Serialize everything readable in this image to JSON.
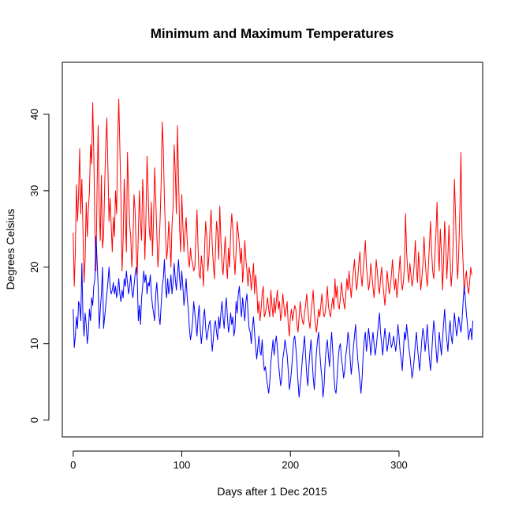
{
  "chart_data": {
    "type": "line",
    "title": "Minimum and Maximum Temperatures",
    "xlabel": "Days after 1 Dec 2015",
    "ylabel": "Degrees Celsius",
    "xlim": [
      -10,
      377
    ],
    "ylim": [
      -2.2,
      46.8
    ],
    "x_ticks": [
      0,
      100,
      200,
      300
    ],
    "y_ticks": [
      0,
      10,
      20,
      30,
      40
    ],
    "grid": false,
    "legend": "none",
    "series": [
      {
        "color": "#ff0000",
        "values": [
          24.5,
          17.5,
          22.0,
          30.8,
          26.0,
          29.5,
          35.5,
          27.0,
          31.5,
          25.0,
          18.0,
          21.0,
          28.5,
          24.0,
          27.5,
          30.0,
          36.0,
          33.5,
          41.5,
          35.0,
          25.0,
          19.5,
          30.0,
          38.5,
          27.5,
          23.5,
          32.0,
          22.5,
          24.0,
          30.5,
          36.0,
          39.5,
          33.0,
          26.0,
          29.0,
          25.5,
          22.0,
          26.5,
          24.0,
          30.0,
          27.0,
          36.5,
          42.0,
          35.5,
          29.0,
          19.5,
          23.5,
          31.5,
          27.0,
          22.0,
          35.0,
          30.0,
          25.5,
          24.0,
          20.0,
          23.0,
          29.5,
          27.5,
          22.5,
          19.0,
          24.5,
          30.0,
          26.0,
          23.5,
          31.5,
          28.0,
          21.0,
          26.5,
          34.5,
          30.0,
          25.0,
          23.5,
          28.5,
          21.5,
          26.0,
          33.0,
          29.0,
          24.5,
          20.0,
          22.5,
          26.0,
          31.0,
          39.0,
          35.5,
          29.0,
          24.5,
          21.0,
          22.5,
          26.0,
          23.5,
          20.0,
          25.5,
          28.0,
          36.0,
          32.5,
          27.0,
          38.5,
          32.0,
          25.0,
          22.0,
          29.5,
          25.5,
          22.0,
          24.5,
          26.5,
          23.5,
          21.0,
          20.0,
          22.5,
          21.0,
          20.5,
          19.5,
          20.0,
          24.0,
          27.5,
          22.5,
          19.0,
          18.5,
          21.5,
          20.0,
          17.5,
          22.5,
          26.0,
          24.0,
          19.5,
          21.5,
          25.0,
          27.5,
          23.0,
          20.5,
          18.5,
          22.0,
          26.0,
          24.5,
          21.0,
          28.0,
          23.5,
          20.5,
          19.0,
          21.5,
          24.0,
          20.5,
          18.5,
          22.5,
          20.0,
          24.5,
          27.0,
          25.0,
          21.5,
          19.0,
          22.0,
          26.0,
          24.5,
          23.0,
          20.5,
          22.5,
          18.0,
          20.0,
          23.5,
          21.0,
          19.5,
          17.5,
          20.0,
          19.0,
          17.0,
          18.5,
          20.5,
          16.5,
          19.0,
          17.5,
          14.0,
          15.5,
          13.0,
          14.5,
          16.5,
          17.5,
          13.5,
          14.0,
          15.0,
          16.0,
          14.5,
          13.5,
          17.0,
          15.0,
          13.5,
          16.0,
          14.0,
          15.5,
          17.0,
          14.5,
          15.5,
          13.0,
          14.0,
          16.5,
          15.0,
          13.5,
          14.5,
          15.5,
          12.5,
          11.0,
          13.5,
          14.5,
          13.0,
          14.0,
          15.0,
          14.5,
          12.5,
          11.5,
          13.5,
          15.5,
          14.0,
          13.0,
          12.5,
          14.0,
          15.0,
          16.5,
          14.5,
          13.0,
          12.0,
          14.0,
          15.5,
          17.0,
          14.0,
          12.5,
          11.5,
          13.0,
          14.5,
          13.5,
          15.0,
          16.5,
          14.5,
          13.5,
          14.0,
          15.5,
          17.5,
          15.0,
          14.0,
          13.5,
          15.0,
          16.0,
          14.5,
          18.5,
          16.0,
          17.5,
          15.0,
          14.5,
          16.0,
          18.0,
          16.5,
          15.5,
          14.5,
          16.5,
          18.5,
          17.0,
          19.5,
          17.5,
          16.0,
          18.0,
          19.5,
          21.0,
          18.5,
          17.0,
          18.5,
          20.5,
          22.0,
          19.0,
          17.5,
          19.5,
          21.5,
          23.5,
          20.0,
          18.5,
          17.0,
          18.0,
          20.5,
          19.0,
          17.5,
          16.0,
          18.0,
          21.0,
          19.5,
          17.5,
          16.5,
          18.5,
          20.0,
          18.0,
          16.5,
          15.0,
          17.0,
          19.5,
          18.0,
          16.5,
          17.5,
          19.0,
          21.0,
          18.5,
          17.0,
          18.5,
          16.0,
          17.5,
          19.5,
          21.5,
          18.5,
          17.0,
          18.0,
          20.0,
          27.0,
          22.0,
          19.5,
          18.0,
          20.5,
          19.0,
          17.5,
          18.5,
          20.5,
          23.5,
          20.0,
          18.0,
          22.0,
          19.5,
          17.0,
          18.5,
          20.5,
          24.0,
          21.0,
          19.0,
          17.5,
          20.0,
          23.0,
          26.0,
          22.0,
          19.5,
          18.5,
          21.5,
          24.5,
          28.5,
          22.5,
          19.5,
          25.0,
          22.0,
          17.0,
          20.5,
          26.0,
          23.0,
          18.5,
          21.5,
          25.5,
          21.0,
          17.5,
          19.5,
          24.0,
          31.5,
          27.0,
          21.0,
          18.5,
          22.0,
          27.5,
          35.0,
          24.0,
          20.5,
          16.5,
          18.5,
          19.5,
          17.5,
          16.5,
          18.0,
          20.0,
          19.0
        ]
      },
      {
        "color": "#0000ff",
        "values": [
          14.5,
          9.5,
          11.0,
          13.5,
          12.0,
          15.5,
          15.0,
          13.0,
          20.5,
          13.5,
          11.0,
          14.0,
          12.5,
          10.0,
          11.5,
          14.5,
          13.0,
          16.0,
          15.0,
          17.5,
          18.5,
          24.0,
          21.0,
          17.5,
          12.0,
          14.5,
          16.5,
          20.0,
          12.0,
          13.5,
          15.0,
          16.5,
          18.0,
          20.0,
          17.5,
          16.5,
          17.0,
          18.0,
          16.5,
          17.5,
          16.0,
          17.0,
          18.5,
          16.5,
          15.5,
          17.0,
          16.0,
          18.5,
          17.5,
          19.5,
          18.0,
          16.5,
          17.5,
          19.0,
          17.0,
          16.0,
          17.5,
          19.0,
          20.0,
          18.5,
          13.0,
          15.0,
          12.5,
          16.0,
          17.5,
          19.5,
          18.0,
          19.0,
          16.5,
          18.0,
          17.5,
          19.0,
          16.5,
          15.0,
          14.0,
          13.0,
          16.5,
          18.0,
          15.5,
          13.5,
          12.5,
          15.0,
          17.5,
          18.5,
          21.0,
          17.5,
          16.0,
          18.5,
          16.5,
          17.5,
          19.0,
          16.5,
          18.0,
          20.5,
          18.5,
          17.0,
          19.0,
          21.0,
          18.5,
          17.0,
          19.5,
          17.5,
          15.0,
          16.5,
          18.5,
          16.0,
          14.5,
          12.0,
          10.5,
          11.5,
          13.0,
          15.5,
          14.0,
          12.5,
          11.0,
          13.5,
          15.0,
          12.0,
          10.0,
          11.5,
          13.5,
          14.5,
          12.0,
          10.5,
          11.5,
          12.5,
          13.0,
          11.5,
          9.0,
          10.5,
          12.5,
          13.0,
          11.5,
          10.5,
          13.5,
          12.0,
          14.0,
          15.5,
          13.5,
          12.0,
          14.5,
          16.0,
          13.5,
          11.5,
          12.5,
          14.0,
          12.5,
          13.5,
          11.0,
          12.0,
          15.5,
          14.0,
          16.5,
          17.5,
          15.0,
          13.5,
          16.0,
          14.5,
          13.0,
          15.5,
          16.5,
          14.0,
          12.0,
          11.5,
          10.0,
          12.0,
          13.5,
          11.5,
          9.5,
          8.0,
          9.5,
          11.0,
          9.0,
          8.5,
          10.5,
          8.0,
          6.5,
          7.0,
          5.5,
          4.5,
          3.5,
          5.0,
          7.5,
          9.0,
          10.5,
          8.5,
          10.0,
          11.0,
          9.5,
          7.5,
          6.0,
          4.5,
          5.5,
          8.0,
          9.0,
          10.5,
          9.5,
          8.5,
          6.5,
          4.0,
          5.0,
          6.5,
          8.5,
          10.5,
          11.0,
          9.5,
          7.5,
          5.0,
          3.0,
          4.5,
          6.0,
          8.0,
          9.5,
          11.0,
          8.5,
          6.0,
          4.5,
          7.0,
          9.0,
          10.5,
          8.0,
          5.5,
          4.0,
          6.5,
          9.0,
          10.5,
          11.5,
          9.0,
          7.0,
          5.5,
          3.0,
          4.5,
          7.5,
          9.5,
          10.5,
          8.5,
          7.0,
          9.5,
          11.5,
          9.0,
          6.0,
          4.0,
          3.5,
          5.5,
          8.0,
          9.5,
          10.0,
          8.0,
          7.0,
          5.5,
          6.5,
          8.5,
          9.5,
          11.5,
          10.5,
          8.0,
          6.0,
          7.5,
          9.5,
          11.0,
          12.5,
          10.0,
          8.0,
          6.5,
          5.0,
          3.5,
          5.5,
          8.5,
          10.5,
          11.5,
          9.0,
          10.5,
          12.0,
          10.5,
          8.5,
          10.0,
          11.5,
          10.0,
          8.5,
          9.5,
          11.0,
          12.5,
          14.0,
          11.5,
          10.0,
          8.5,
          10.5,
          12.0,
          10.5,
          9.0,
          10.0,
          11.5,
          10.5,
          9.5,
          10.0,
          11.0,
          10.0,
          9.0,
          10.5,
          12.5,
          11.0,
          9.0,
          8.0,
          6.5,
          9.0,
          11.5,
          10.5,
          12.5,
          11.0,
          9.5,
          8.5,
          7.0,
          5.5,
          6.5,
          8.0,
          10.0,
          11.5,
          9.5,
          8.0,
          6.5,
          8.5,
          10.5,
          12.0,
          11.0,
          9.0,
          10.5,
          12.5,
          10.0,
          8.0,
          6.5,
          8.5,
          11.0,
          13.0,
          11.5,
          9.5,
          7.5,
          9.0,
          11.5,
          10.0,
          8.5,
          10.5,
          12.5,
          14.5,
          12.0,
          10.5,
          9.0,
          11.5,
          13.0,
          11.0,
          10.0,
          12.0,
          14.0,
          12.5,
          11.0,
          12.0,
          13.5,
          12.5,
          11.5,
          13.0,
          15.5,
          17.5,
          16.0,
          14.0,
          12.5,
          10.5,
          11.5,
          12.0,
          10.5,
          13.0
        ]
      }
    ]
  }
}
